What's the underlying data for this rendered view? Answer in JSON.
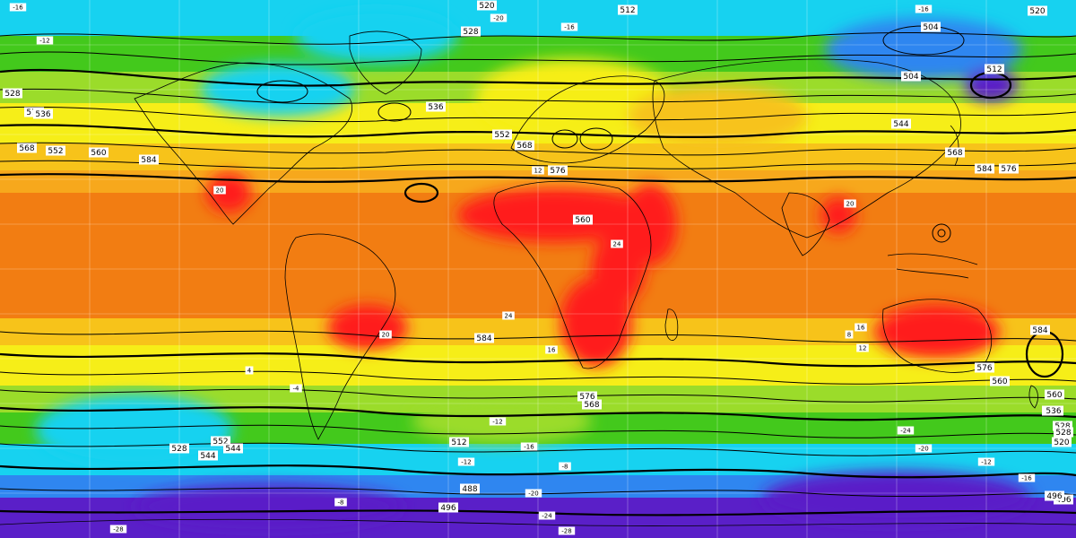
{
  "map": {
    "projection": "equirectangular",
    "field_shading": "temperature_850hPa",
    "field_contours": "geopotential_500hPa_dam",
    "grid": true,
    "colors": {
      "violet": "#5a1fc8",
      "deep_blue": "#1a3fd6",
      "blue": "#2f86f0",
      "cyan": "#17d2f0",
      "teal": "#2fe0b8",
      "green": "#43c91c",
      "light_green": "#9bdc2a",
      "yellow_green": "#cfe62a",
      "yellow": "#f6ee18",
      "gold": "#f7c31a",
      "orange": "#f7a81c",
      "dark_orange": "#f27d12",
      "red": "#ff1f1f",
      "dark_red": "#c2000c"
    },
    "height_labels": [
      {
        "text": "520"
      },
      {
        "text": "512"
      },
      {
        "text": "528"
      },
      {
        "text": "536"
      },
      {
        "text": "552"
      },
      {
        "text": "568"
      },
      {
        "text": "576"
      },
      {
        "text": "584"
      },
      {
        "text": "560"
      },
      {
        "text": "544"
      },
      {
        "text": "504"
      },
      {
        "text": "496"
      },
      {
        "text": "488"
      },
      {
        "text": "512"
      },
      {
        "text": "520"
      },
      {
        "text": "528"
      },
      {
        "text": "544"
      },
      {
        "text": "560"
      },
      {
        "text": "576"
      },
      {
        "text": "584"
      },
      {
        "text": "576"
      },
      {
        "text": "568"
      },
      {
        "text": "584"
      },
      {
        "text": "576"
      },
      {
        "text": "568"
      },
      {
        "text": "560"
      },
      {
        "text": "552"
      },
      {
        "text": "544"
      },
      {
        "text": "536"
      },
      {
        "text": "528"
      },
      {
        "text": "520"
      },
      {
        "text": "512"
      },
      {
        "text": "504"
      },
      {
        "text": "496"
      },
      {
        "text": "584"
      },
      {
        "text": "576"
      },
      {
        "text": "568"
      },
      {
        "text": "560"
      },
      {
        "text": "528"
      },
      {
        "text": "552"
      },
      {
        "text": "544"
      },
      {
        "text": "528"
      },
      {
        "text": "536"
      },
      {
        "text": "496"
      }
    ],
    "temperature_labels": [
      {
        "text": "-16"
      },
      {
        "text": "-12"
      },
      {
        "text": "-16"
      },
      {
        "text": "-20"
      },
      {
        "text": "-16"
      },
      {
        "text": "-12"
      },
      {
        "text": "-8"
      },
      {
        "text": "12"
      },
      {
        "text": "20"
      },
      {
        "text": "24"
      },
      {
        "text": "16"
      },
      {
        "text": "24"
      },
      {
        "text": "20"
      },
      {
        "text": "16"
      },
      {
        "text": "20"
      },
      {
        "text": "12"
      },
      {
        "text": "8"
      },
      {
        "text": "4"
      },
      {
        "text": "-4"
      },
      {
        "text": "-8"
      },
      {
        "text": "-12"
      },
      {
        "text": "-16"
      },
      {
        "text": "-20"
      },
      {
        "text": "-24"
      },
      {
        "text": "-28"
      },
      {
        "text": "-24"
      },
      {
        "text": "-20"
      },
      {
        "text": "-12"
      },
      {
        "text": "-16"
      },
      {
        "text": "-28"
      }
    ]
  }
}
